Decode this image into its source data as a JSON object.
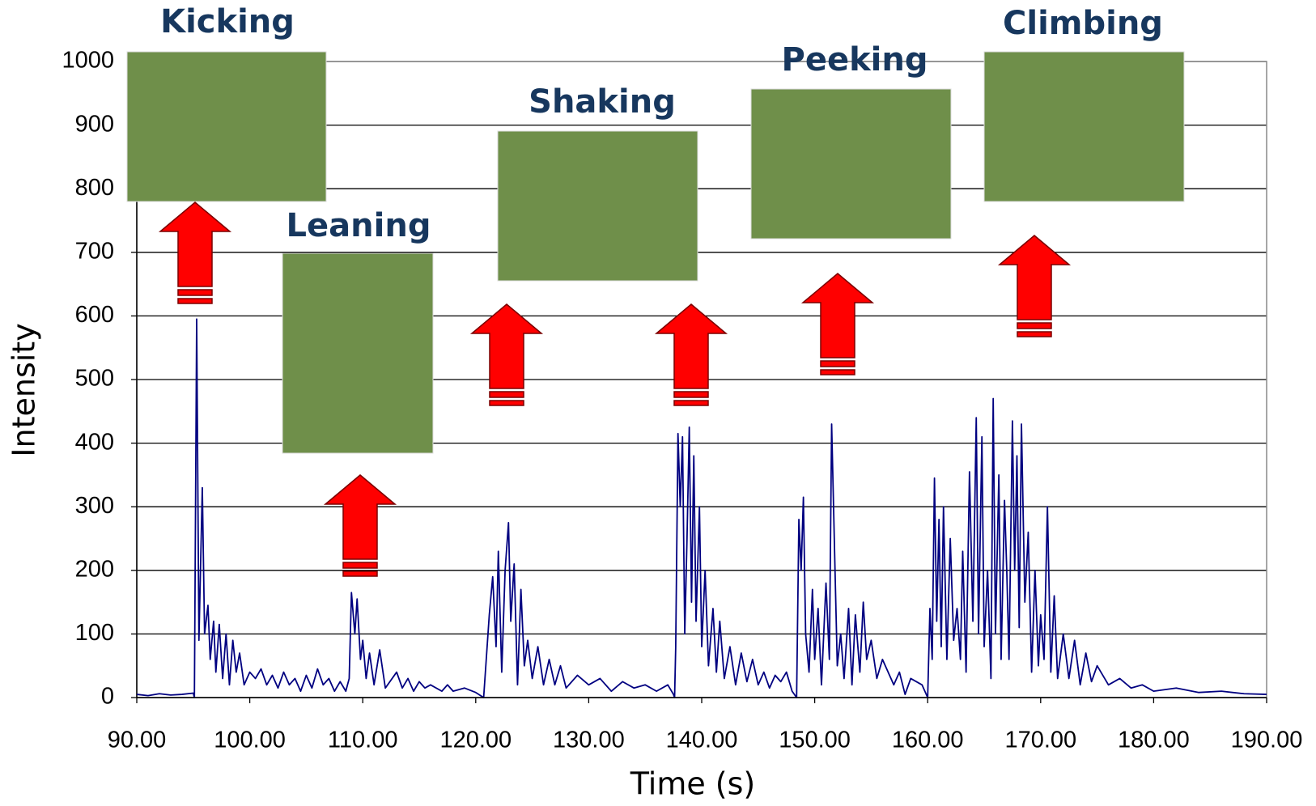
{
  "chart_data": {
    "type": "line",
    "xlabel": "Time (s)",
    "ylabel": "Intensity",
    "annotations": [
      "Kicking",
      "Leaning",
      "Shaking",
      "Peeking",
      "Climbing"
    ],
    "xlim": [
      90,
      190
    ],
    "ylim": [
      0,
      1000
    ],
    "xticks": [
      {
        "value": 90,
        "label": "90.00"
      },
      {
        "value": 100,
        "label": "100.00"
      },
      {
        "value": 110,
        "label": "110.00"
      },
      {
        "value": 120,
        "label": "120.00"
      },
      {
        "value": 130,
        "label": "130.00"
      },
      {
        "value": 140,
        "label": "140.00"
      },
      {
        "value": 150,
        "label": "150.00"
      },
      {
        "value": 160,
        "label": "160.00"
      },
      {
        "value": 170,
        "label": "170.00"
      },
      {
        "value": 180,
        "label": "180.00"
      },
      {
        "value": 190,
        "label": "190.00"
      }
    ],
    "yticks": [
      0,
      100,
      200,
      300,
      400,
      500,
      600,
      700,
      800,
      900,
      1000
    ],
    "grid": true,
    "color": "#000080",
    "x": [
      90,
      91,
      92,
      93,
      94,
      95,
      95.1,
      95.3,
      95.5,
      95.8,
      96,
      96.3,
      96.5,
      96.8,
      97,
      97.3,
      97.6,
      97.9,
      98.2,
      98.5,
      98.8,
      99.1,
      99.5,
      100,
      100.5,
      101,
      101.5,
      102,
      102.5,
      103,
      103.5,
      104,
      104.5,
      105,
      105.5,
      106,
      106.5,
      107,
      107.5,
      108,
      108.5,
      108.8,
      109,
      109.3,
      109.5,
      109.8,
      110,
      110.3,
      110.6,
      111,
      111.5,
      112,
      113,
      113.5,
      114,
      114.5,
      115,
      115.5,
      116,
      117,
      117.5,
      118,
      119,
      120,
      120.7,
      121.2,
      121.5,
      121.8,
      122,
      122.3,
      122.6,
      122.9,
      123.1,
      123.4,
      123.7,
      124,
      124.3,
      124.6,
      125,
      125.5,
      126,
      126.5,
      127,
      127.5,
      128,
      129,
      130,
      131,
      132,
      133,
      134,
      135,
      136,
      137,
      137.5,
      137.6,
      137.7,
      137.9,
      138.1,
      138.3,
      138.5,
      138.7,
      138.9,
      139.1,
      139.3,
      139.5,
      139.8,
      140,
      140.3,
      140.6,
      141,
      141.3,
      141.6,
      142,
      142.5,
      143,
      143.5,
      144,
      144.5,
      145,
      145.5,
      146,
      146.5,
      147,
      147.5,
      148,
      148.4,
      148.6,
      148.8,
      149,
      149.2,
      149.5,
      149.8,
      150,
      150.3,
      150.6,
      151,
      151.3,
      151.5,
      151.8,
      152,
      152.3,
      152.6,
      153,
      153.3,
      153.6,
      154,
      154.3,
      154.6,
      155,
      155.5,
      156,
      157,
      157.5,
      158,
      158.5,
      159.5,
      160,
      160.2,
      160.4,
      160.6,
      160.8,
      161,
      161.2,
      161.4,
      161.7,
      162,
      162.3,
      162.6,
      162.9,
      163.1,
      163.4,
      163.7,
      164,
      164.3,
      164.5,
      164.8,
      165,
      165.3,
      165.6,
      165.8,
      166,
      166.3,
      166.5,
      166.8,
      167,
      167.2,
      167.5,
      167.7,
      167.9,
      168.1,
      168.3,
      168.6,
      168.9,
      169.2,
      169.5,
      169.8,
      170,
      170.3,
      170.6,
      170.9,
      171.2,
      171.5,
      172,
      172.5,
      173,
      173.5,
      174,
      174.5,
      175,
      176,
      177,
      178,
      179,
      180,
      182,
      184,
      186,
      188,
      190
    ],
    "values": [
      5,
      3,
      6,
      4,
      5,
      7,
      0,
      595,
      90,
      330,
      100,
      145,
      60,
      120,
      40,
      115,
      30,
      100,
      20,
      90,
      40,
      70,
      20,
      40,
      30,
      45,
      20,
      35,
      15,
      40,
      20,
      30,
      10,
      35,
      15,
      45,
      20,
      30,
      10,
      25,
      10,
      30,
      165,
      100,
      155,
      60,
      90,
      30,
      70,
      20,
      75,
      15,
      40,
      15,
      30,
      10,
      25,
      15,
      20,
      10,
      20,
      10,
      15,
      8,
      0,
      130,
      190,
      80,
      230,
      40,
      200,
      275,
      120,
      210,
      20,
      170,
      50,
      90,
      30,
      80,
      20,
      60,
      20,
      50,
      15,
      35,
      20,
      30,
      10,
      25,
      15,
      20,
      10,
      20,
      5,
      0,
      80,
      415,
      300,
      410,
      100,
      250,
      425,
      150,
      380,
      120,
      300,
      80,
      200,
      50,
      140,
      40,
      120,
      30,
      80,
      20,
      70,
      25,
      60,
      20,
      40,
      15,
      35,
      25,
      40,
      10,
      0,
      280,
      200,
      315,
      100,
      40,
      170,
      60,
      140,
      20,
      180,
      60,
      430,
      200,
      50,
      100,
      30,
      140,
      20,
      130,
      40,
      150,
      60,
      90,
      30,
      60,
      20,
      40,
      5,
      30,
      20,
      0,
      140,
      60,
      345,
      120,
      280,
      80,
      300,
      60,
      250,
      90,
      140,
      60,
      230,
      40,
      355,
      120,
      440,
      100,
      410,
      80,
      200,
      30,
      470,
      100,
      350,
      60,
      310,
      200,
      60,
      435,
      200,
      380,
      110,
      430,
      150,
      260,
      40,
      200,
      50,
      130,
      60,
      300,
      40,
      160,
      30,
      100,
      30,
      90,
      20,
      70,
      25,
      50,
      20,
      30,
      15,
      20,
      10,
      15,
      8,
      10,
      6,
      5
    ]
  }
}
